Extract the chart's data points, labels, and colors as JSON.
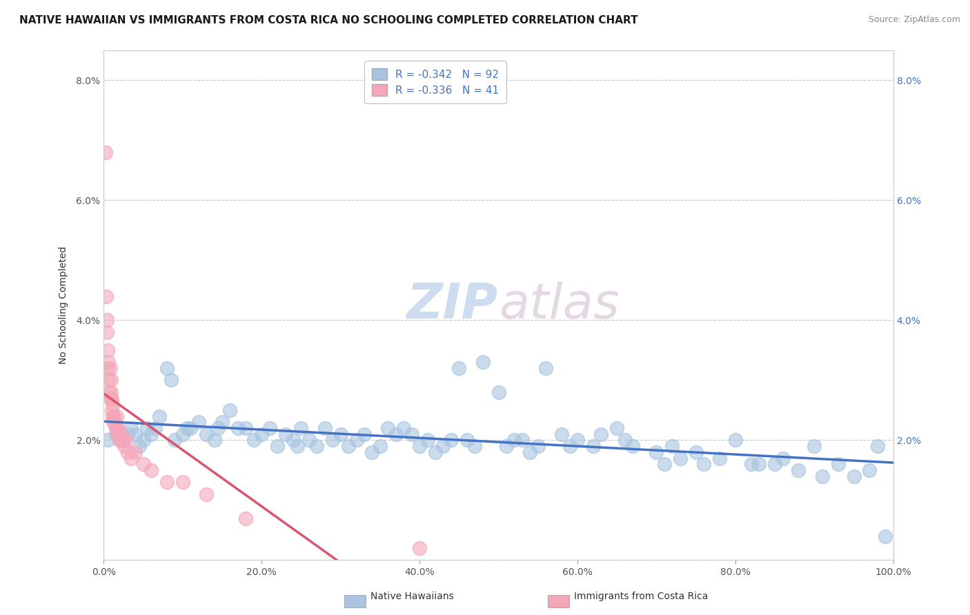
{
  "title": "NATIVE HAWAIIAN VS IMMIGRANTS FROM COSTA RICA NO SCHOOLING COMPLETED CORRELATION CHART",
  "source": "Source: ZipAtlas.com",
  "ylabel": "No Schooling Completed",
  "r_blue": -0.342,
  "n_blue": 92,
  "r_pink": -0.336,
  "n_pink": 41,
  "color_blue": "#a8c4e0",
  "color_pink": "#f4a7b9",
  "line_blue": "#4472c4",
  "line_pink": "#d9556e",
  "legend_blue": "Native Hawaiians",
  "legend_pink": "Immigrants from Costa Rica",
  "watermark_zip": "ZIP",
  "watermark_atlas": "atlas",
  "xlim": [
    0.0,
    1.0
  ],
  "ylim": [
    0.0,
    0.085
  ],
  "xticks": [
    0.0,
    0.2,
    0.4,
    0.6,
    0.8,
    1.0
  ],
  "yticks": [
    0.0,
    0.02,
    0.04,
    0.06,
    0.08
  ],
  "xticklabels": [
    "0.0%",
    "20.0%",
    "40.0%",
    "60.0%",
    "80.0%",
    "100.0%"
  ],
  "yticklabels_left": [
    "",
    "2.0%",
    "4.0%",
    "6.0%",
    "8.0%"
  ],
  "yticklabels_right": [
    "",
    "2.0%",
    "4.0%",
    "6.0%",
    "8.0%"
  ],
  "title_fontsize": 11,
  "axis_fontsize": 10,
  "tick_fontsize": 10,
  "background_color": "#ffffff",
  "grid_color": "#c8c8c8",
  "blue_x": [
    0.005,
    0.015,
    0.02,
    0.03,
    0.035,
    0.04,
    0.045,
    0.05,
    0.055,
    0.06,
    0.065,
    0.07,
    0.08,
    0.085,
    0.09,
    0.1,
    0.105,
    0.11,
    0.12,
    0.13,
    0.14,
    0.145,
    0.15,
    0.16,
    0.17,
    0.18,
    0.19,
    0.2,
    0.21,
    0.22,
    0.23,
    0.24,
    0.245,
    0.25,
    0.26,
    0.27,
    0.28,
    0.29,
    0.3,
    0.31,
    0.32,
    0.33,
    0.34,
    0.35,
    0.36,
    0.37,
    0.38,
    0.39,
    0.4,
    0.41,
    0.42,
    0.43,
    0.44,
    0.45,
    0.46,
    0.47,
    0.48,
    0.5,
    0.51,
    0.52,
    0.53,
    0.54,
    0.55,
    0.56,
    0.58,
    0.59,
    0.6,
    0.62,
    0.63,
    0.65,
    0.66,
    0.67,
    0.7,
    0.71,
    0.72,
    0.73,
    0.75,
    0.76,
    0.78,
    0.8,
    0.82,
    0.83,
    0.85,
    0.86,
    0.88,
    0.9,
    0.91,
    0.93,
    0.95,
    0.97,
    0.98,
    0.99
  ],
  "blue_y": [
    0.02,
    0.021,
    0.02,
    0.021,
    0.022,
    0.021,
    0.019,
    0.02,
    0.022,
    0.021,
    0.022,
    0.024,
    0.032,
    0.03,
    0.02,
    0.021,
    0.022,
    0.022,
    0.023,
    0.021,
    0.02,
    0.022,
    0.023,
    0.025,
    0.022,
    0.022,
    0.02,
    0.021,
    0.022,
    0.019,
    0.021,
    0.02,
    0.019,
    0.022,
    0.02,
    0.019,
    0.022,
    0.02,
    0.021,
    0.019,
    0.02,
    0.021,
    0.018,
    0.019,
    0.022,
    0.021,
    0.022,
    0.021,
    0.019,
    0.02,
    0.018,
    0.019,
    0.02,
    0.032,
    0.02,
    0.019,
    0.033,
    0.028,
    0.019,
    0.02,
    0.02,
    0.018,
    0.019,
    0.032,
    0.021,
    0.019,
    0.02,
    0.019,
    0.021,
    0.022,
    0.02,
    0.019,
    0.018,
    0.016,
    0.019,
    0.017,
    0.018,
    0.016,
    0.017,
    0.02,
    0.016,
    0.016,
    0.016,
    0.017,
    0.015,
    0.019,
    0.014,
    0.016,
    0.014,
    0.015,
    0.019,
    0.004
  ],
  "pink_x": [
    0.002,
    0.003,
    0.004,
    0.004,
    0.005,
    0.005,
    0.006,
    0.006,
    0.007,
    0.008,
    0.008,
    0.009,
    0.009,
    0.01,
    0.01,
    0.011,
    0.011,
    0.012,
    0.013,
    0.014,
    0.015,
    0.016,
    0.016,
    0.017,
    0.018,
    0.019,
    0.02,
    0.022,
    0.024,
    0.026,
    0.028,
    0.03,
    0.035,
    0.04,
    0.05,
    0.06,
    0.08,
    0.1,
    0.13,
    0.18,
    0.4
  ],
  "pink_y": [
    0.068,
    0.044,
    0.04,
    0.038,
    0.035,
    0.032,
    0.033,
    0.03,
    0.028,
    0.032,
    0.027,
    0.03,
    0.028,
    0.025,
    0.027,
    0.024,
    0.026,
    0.023,
    0.024,
    0.023,
    0.022,
    0.022,
    0.024,
    0.021,
    0.022,
    0.021,
    0.02,
    0.021,
    0.02,
    0.019,
    0.02,
    0.018,
    0.017,
    0.018,
    0.016,
    0.015,
    0.013,
    0.013,
    0.011,
    0.007,
    0.002
  ]
}
